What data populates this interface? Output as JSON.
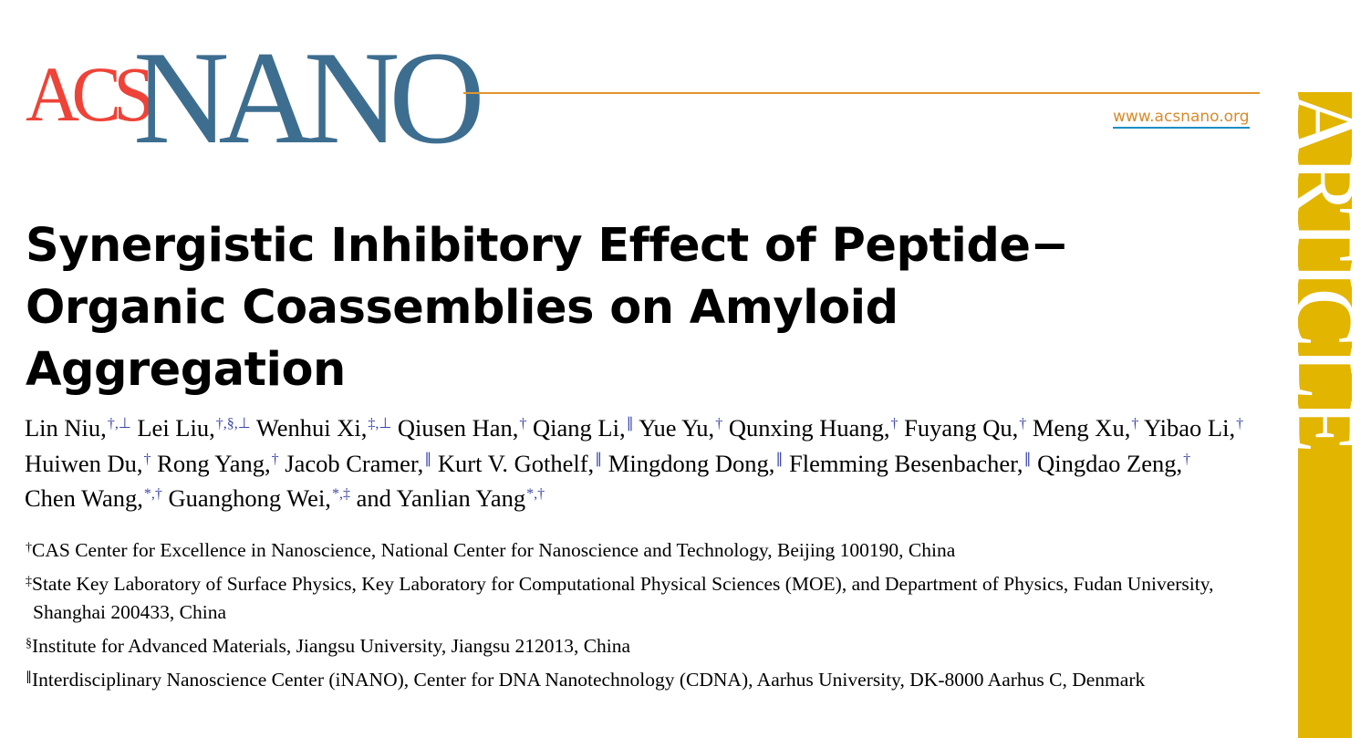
{
  "journal": {
    "logo_acs": "ACS",
    "logo_nano": "NANO",
    "url": "www.acsnano.org",
    "section_label": "ARTICLE",
    "colors": {
      "acs_red": "#ee4338",
      "nano_blue": "#3d6e90",
      "rule_orange": "#e0962e",
      "sidebar_gold": "#e2b500",
      "footnote_blue": "#3b46a8"
    }
  },
  "title": "Synergistic Inhibitory Effect of Peptide–Organic Coassemblies on Amyloid Aggregation",
  "title_lines": [
    "Synergistic Inhibitory Effect of Peptide−",
    "Organic Coassemblies on Amyloid",
    "Aggregation"
  ],
  "authors": [
    {
      "name": "Lin Niu,",
      "marks": "†,⊥"
    },
    {
      "name": "Lei Liu,",
      "marks": "†,§,⊥"
    },
    {
      "name": "Wenhui Xi,",
      "marks": "‡,⊥"
    },
    {
      "name": "Qiusen Han,",
      "marks": "†"
    },
    {
      "name": "Qiang Li,",
      "marks": "∥"
    },
    {
      "name": "Yue Yu,",
      "marks": "†"
    },
    {
      "name": "Qunxing Huang,",
      "marks": "†"
    },
    {
      "name": "Fuyang Qu,",
      "marks": "†"
    },
    {
      "name": "Meng Xu,",
      "marks": "†"
    },
    {
      "name": "Yibao Li,",
      "marks": "†"
    },
    {
      "name": "Huiwen Du,",
      "marks": "†"
    },
    {
      "name": "Rong Yang,",
      "marks": "†"
    },
    {
      "name": "Jacob Cramer,",
      "marks": "∥"
    },
    {
      "name": "Kurt V. Gothelf,",
      "marks": "∥"
    },
    {
      "name": "Mingdong Dong,",
      "marks": "∥"
    },
    {
      "name": "Flemming Besenbacher,",
      "marks": "∥"
    },
    {
      "name": "Qingdao Zeng,",
      "marks": "†"
    },
    {
      "name": "Chen Wang,",
      "marks": "*,†"
    },
    {
      "name": "Guanghong Wei,",
      "marks": "*,‡"
    },
    {
      "name": "and Yanlian Yang",
      "marks": "*,†"
    }
  ],
  "affiliations": [
    {
      "mark": "†",
      "text": "CAS Center for Excellence in Nanoscience, National Center for Nanoscience and Technology, Beijing 100190, China"
    },
    {
      "mark": "‡",
      "text": "State Key Laboratory of Surface Physics, Key Laboratory for Computational Physical Sciences (MOE), and Department of Physics, Fudan University, Shanghai 200433, China"
    },
    {
      "mark": "§",
      "text": "Institute for Advanced Materials, Jiangsu University, Jiangsu 212013, China"
    },
    {
      "mark": "∥",
      "text": "Interdisciplinary Nanoscience Center (iNANO), Center for DNA Nanotechnology (CDNA), Aarhus University, DK-8000 Aarhus C, Denmark"
    }
  ]
}
